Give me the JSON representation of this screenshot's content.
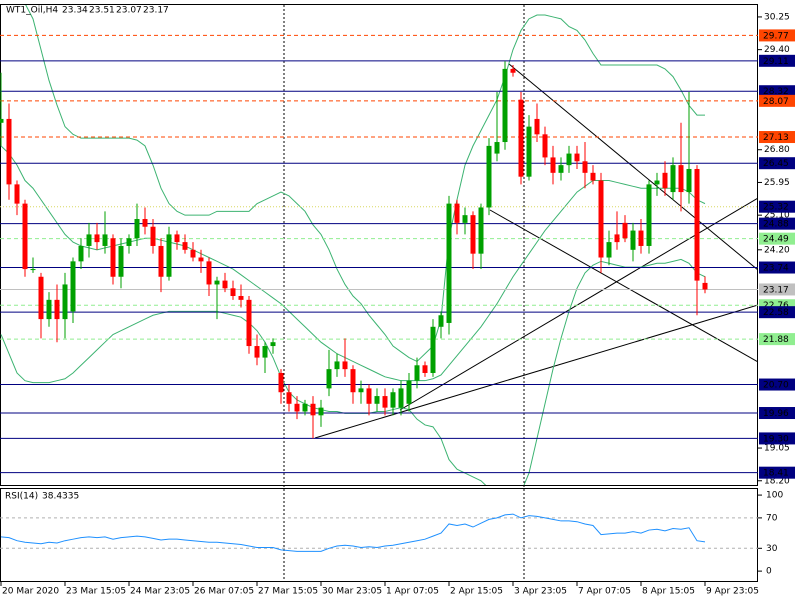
{
  "chart_data": [
    {
      "type": "candlestick",
      "title": "WT1_Oil,H4",
      "x": [
        "20 Mar 2020",
        null,
        null,
        null,
        null,
        null,
        null,
        null,
        "23 Mar 15:05",
        null,
        null,
        null,
        null,
        null,
        null,
        null,
        "24 Mar 23:05",
        null,
        null,
        null,
        null,
        null,
        null,
        null,
        "26 Mar 07:05",
        null,
        null,
        null,
        null,
        null,
        null,
        null,
        "27 Mar 15:05",
        null,
        null,
        null,
        null,
        null,
        null,
        null,
        "30 Mar 23:05",
        null,
        null,
        null,
        null,
        null,
        null,
        null,
        "1 Apr 07:05",
        null,
        null,
        null,
        null,
        null,
        null,
        null,
        "2 Apr 15:05",
        null,
        null,
        null,
        null,
        null,
        null,
        null,
        "3 Apr 23:05",
        null,
        null,
        null,
        null,
        null,
        null,
        null,
        "7 Apr 07:05",
        null,
        null,
        null,
        null,
        null,
        null,
        null,
        "8 Apr 15:05",
        null,
        null,
        null,
        null,
        null,
        null,
        null,
        "9 Apr 23:05"
      ],
      "open": [
        27.5,
        27.6,
        25.9,
        25.4,
        23.7,
        23.5,
        22.4,
        22.9,
        22.4,
        22.6,
        23.9,
        24.3,
        24.6,
        24.3,
        24.5,
        23.5,
        24.3,
        24.5,
        25.0,
        24.8,
        24.3,
        23.5,
        24.6,
        24.4,
        24.2,
        24.0,
        23.9,
        23.3,
        23.4,
        23.2,
        23.0,
        22.9,
        21.7,
        21.4,
        21.7,
        21.0,
        20.5,
        20.2,
        20.0,
        20.2,
        19.9,
        20.6,
        21.1,
        21.3,
        21.1,
        20.5,
        20.6,
        20.2,
        20.4,
        20.1,
        20.1,
        20.2,
        20.8,
        21.2,
        21.0,
        22.2,
        22.3,
        25.4,
        24.9,
        25.1,
        24.1,
        25.3,
        26.7,
        27.0,
        28.9,
        28.1,
        26.1,
        27.6,
        27.2,
        26.6,
        26.2,
        26.4,
        26.7,
        26.5,
        26.2,
        26.0,
        24.0,
        24.6,
        24.9,
        24.2,
        24.7,
        24.3,
        25.9,
        26.2,
        25.7,
        26.4,
        25.7,
        26.3,
        23.34
      ],
      "high": [
        28.8,
        28.0,
        26.0,
        25.5,
        24.0,
        23.6,
        23.1,
        23.3,
        23.6,
        24.0,
        24.5,
        24.9,
        24.9,
        25.2,
        24.6,
        24.5,
        24.6,
        25.4,
        25.3,
        25.0,
        24.5,
        24.8,
        24.7,
        24.6,
        24.4,
        24.2,
        24.0,
        23.5,
        23.6,
        23.4,
        23.3,
        23.0,
        22.0,
        21.8,
        21.9,
        21.1,
        20.7,
        20.4,
        20.3,
        20.4,
        20.3,
        21.6,
        21.5,
        21.9,
        21.2,
        20.8,
        20.7,
        20.6,
        20.6,
        20.6,
        20.8,
        21.0,
        21.4,
        21.3,
        22.4,
        22.6,
        25.6,
        25.5,
        25.3,
        25.2,
        25.4,
        27.1,
        28.3,
        29.1,
        29.0,
        28.3,
        27.7,
        28.0,
        27.4,
        26.9,
        26.6,
        26.9,
        26.9,
        27.0,
        26.4,
        26.2,
        24.7,
        25.2,
        25.1,
        24.9,
        25.0,
        26.0,
        26.2,
        26.5,
        26.6,
        27.5,
        28.3,
        26.4,
        23.51
      ],
      "low": [
        26.9,
        25.5,
        25.1,
        23.5,
        23.6,
        21.9,
        22.2,
        21.8,
        21.9,
        22.3,
        23.7,
        24.0,
        24.2,
        24.1,
        23.3,
        23.2,
        24.1,
        24.3,
        24.6,
        24.1,
        23.1,
        23.4,
        24.2,
        24.1,
        23.9,
        23.6,
        23.0,
        22.4,
        23.1,
        22.9,
        22.7,
        21.5,
        21.2,
        21.0,
        21.5,
        20.2,
        20.0,
        19.8,
        19.9,
        19.3,
        19.6,
        20.4,
        20.9,
        20.9,
        20.2,
        20.2,
        19.9,
        20.0,
        19.9,
        19.9,
        19.9,
        20.0,
        20.6,
        20.9,
        20.9,
        21.9,
        22.0,
        24.6,
        24.6,
        23.7,
        23.7,
        25.1,
        26.5,
        26.8,
        28.7,
        25.9,
        26.0,
        27.0,
        26.4,
        25.9,
        26.0,
        26.2,
        26.3,
        25.8,
        25.9,
        23.6,
        23.8,
        24.2,
        24.4,
        23.9,
        24.1,
        24.1,
        25.6,
        25.6,
        25.5,
        25.2,
        25.4,
        22.5,
        23.07
      ],
      "close": [
        27.6,
        25.9,
        25.4,
        23.7,
        23.7,
        22.4,
        22.9,
        22.4,
        23.3,
        23.9,
        24.3,
        24.6,
        24.4,
        24.6,
        23.5,
        24.3,
        24.5,
        25.0,
        24.8,
        24.3,
        23.5,
        24.6,
        24.4,
        24.2,
        24.0,
        23.9,
        23.3,
        23.4,
        23.2,
        23.0,
        22.9,
        21.7,
        21.4,
        21.7,
        21.8,
        20.5,
        20.2,
        20.0,
        20.2,
        19.9,
        20.1,
        21.1,
        21.3,
        21.1,
        20.5,
        20.6,
        20.2,
        20.4,
        20.1,
        20.5,
        20.6,
        20.8,
        21.2,
        21.0,
        22.2,
        22.5,
        25.4,
        24.9,
        25.1,
        24.1,
        25.3,
        26.9,
        27.0,
        28.9,
        28.8,
        26.1,
        27.4,
        27.2,
        26.6,
        26.2,
        26.4,
        26.7,
        26.5,
        26.2,
        26.0,
        24.0,
        24.4,
        24.4,
        24.5,
        24.7,
        24.3,
        25.9,
        26.0,
        25.8,
        26.4,
        25.7,
        26.3,
        23.4,
        23.17
      ],
      "up_color": "#00a000",
      "down_color": "#ff0000",
      "overlays": [
        {
          "color": "#3cb371",
          "values": [
            31.5,
            31.2,
            30.9,
            30.6,
            30.2,
            29.4,
            28.6,
            27.96,
            27.4,
            27.2,
            27.1,
            27.1,
            27.1,
            27.1,
            27.1,
            27.1,
            27.1,
            27.05,
            26.9,
            26.4,
            25.8,
            25.4,
            25.2,
            25.1,
            25.1,
            25.1,
            25.1,
            25.2,
            25.2,
            25.2,
            25.2,
            25.2,
            25.4,
            25.5,
            25.6,
            25.7,
            25.6,
            25.4,
            25.2,
            24.85,
            24.6,
            24.2,
            23.7,
            23.3,
            23.0,
            22.8,
            22.5,
            22.25,
            22.0,
            21.7,
            21.55,
            21.4,
            21.3,
            21.5,
            21.7,
            22.4,
            24.5,
            25.5,
            26.4,
            26.9,
            27.3,
            27.7,
            28.1,
            28.7,
            29.4,
            29.9,
            30.2,
            30.3,
            30.3,
            30.25,
            30.2,
            30.0,
            29.9,
            29.65,
            29.3,
            29.0,
            29.0,
            29.0,
            29.0,
            29.0,
            29.0,
            29.0,
            29.0,
            28.9,
            28.7,
            28.35,
            27.95,
            27.7,
            27.7
          ]
        },
        {
          "color": "#3cb371",
          "values": [
            26.9,
            26.7,
            26.4,
            26.0,
            25.8,
            25.5,
            25.2,
            24.9,
            24.6,
            24.4,
            24.3,
            24.25,
            24.2,
            24.25,
            24.3,
            24.35,
            24.4,
            24.45,
            24.5,
            24.5,
            24.45,
            24.4,
            24.35,
            24.3,
            24.2,
            24.1,
            24.0,
            23.9,
            23.8,
            23.7,
            23.55,
            23.4,
            23.25,
            23.1,
            22.95,
            22.8,
            22.6,
            22.4,
            22.2,
            22.0,
            21.8,
            21.65,
            21.5,
            21.4,
            21.3,
            21.2,
            21.1,
            21.0,
            20.9,
            20.85,
            20.8,
            20.8,
            20.8,
            20.8,
            20.85,
            20.95,
            21.2,
            21.45,
            21.7,
            21.95,
            22.2,
            22.5,
            22.8,
            23.15,
            23.5,
            23.8,
            24.1,
            24.4,
            24.7,
            24.95,
            25.2,
            25.45,
            25.7,
            25.85,
            26.0,
            26.0,
            26.0,
            25.95,
            25.9,
            25.85,
            25.8,
            25.8,
            25.8,
            25.8,
            25.8,
            25.8,
            25.7,
            25.5,
            25.4
          ]
        },
        {
          "color": "#3cb371",
          "values": [
            22.0,
            21.5,
            21.0,
            20.8,
            20.75,
            20.75,
            20.75,
            20.8,
            20.85,
            21.0,
            21.2,
            21.4,
            21.6,
            21.8,
            22.0,
            22.1,
            22.2,
            22.3,
            22.4,
            22.5,
            22.55,
            22.6,
            22.6,
            22.6,
            22.6,
            22.6,
            22.6,
            22.6,
            22.55,
            22.5,
            22.45,
            22.3,
            22.1,
            21.8,
            21.4,
            20.9,
            20.5,
            20.3,
            20.2,
            20.1,
            20.05,
            20.0,
            20.0,
            19.95,
            19.95,
            19.95,
            19.95,
            20.0,
            20.0,
            20.05,
            20.1,
            20.05,
            19.8,
            19.65,
            19.6,
            19.3,
            18.75,
            18.5,
            18.4,
            18.3,
            18.2,
            18.0,
            17.8,
            17.7,
            17.7,
            17.9,
            18.4,
            19.3,
            20.2,
            21.1,
            21.9,
            22.6,
            23.2,
            23.6,
            23.8,
            23.9,
            23.85,
            23.8,
            23.75,
            23.75,
            23.75,
            23.8,
            23.85,
            23.85,
            23.9,
            23.95,
            23.85,
            23.6,
            23.5
          ]
        }
      ],
      "ylim": [
        18.09,
        30.56
      ],
      "yticks": [
        30.25,
        {
          "value": 29.4,
          "label": "29.40"
        },
        {
          "value": 26.8,
          "label": "26.80"
        },
        25.95,
        {
          "value": 25.1,
          "label": "25.10"
        },
        {
          "value": 24.2,
          "label": "24.20"
        },
        19.05,
        {
          "value": 18.2,
          "label": "18.20"
        }
      ],
      "levels": [
        {
          "value": 29.77,
          "color": "#ff4500",
          "style": "dashed"
        },
        {
          "value": 29.11,
          "color": "#000080",
          "style": "solid"
        },
        {
          "value": 28.32,
          "color": "#000080",
          "style": "solid"
        },
        {
          "value": 28.07,
          "color": "#ff4500",
          "style": "dashed"
        },
        {
          "value": 27.13,
          "color": "#ff4500",
          "style": "dashed"
        },
        {
          "value": 26.45,
          "color": "#000080",
          "style": "solid"
        },
        {
          "value": 25.32,
          "color": "#d8d860",
          "style": "dotted",
          "label_color": "#000080"
        },
        {
          "value": 24.88,
          "color": "#000080",
          "style": "solid"
        },
        {
          "value": 24.49,
          "color": "#90ee90",
          "style": "dashed"
        },
        {
          "value": 23.74,
          "color": "#000080",
          "style": "solid"
        },
        {
          "value": 23.17,
          "color": "#c0c0c0",
          "style": "solid"
        },
        {
          "value": 22.76,
          "color": "#90ee90",
          "style": "dashed"
        },
        {
          "value": 22.58,
          "color": "#000080",
          "style": "solid"
        },
        {
          "value": 21.88,
          "color": "#90ee90",
          "style": "dashed"
        },
        {
          "value": 20.7,
          "label": "20.70",
          "color": "#000080",
          "style": "solid"
        },
        {
          "value": 19.96,
          "color": "#000080",
          "style": "solid"
        },
        {
          "value": 19.3,
          "label": "19.30",
          "color": "#000080",
          "style": "solid"
        },
        {
          "value": 18.41,
          "color": "#000080",
          "style": "solid"
        }
      ]
    },
    {
      "type": "line",
      "title": "RSI(14)",
      "series": [
        {
          "color": "#1e90ff",
          "values": [
            45,
            44,
            40,
            38,
            37,
            36,
            38,
            37,
            40,
            42,
            44,
            45,
            44,
            45,
            42,
            44,
            45,
            46,
            45,
            43,
            41,
            42,
            42,
            41,
            40,
            39,
            38,
            38,
            37,
            36,
            35,
            33,
            31,
            31,
            31,
            28,
            27,
            26,
            26,
            26,
            26,
            30,
            33,
            34,
            33,
            31,
            32,
            31,
            33,
            34,
            36,
            38,
            40,
            42,
            46,
            50,
            62,
            60,
            62,
            58,
            63,
            68,
            70,
            74,
            75,
            70,
            73,
            72,
            70,
            68,
            66,
            66,
            65,
            62,
            60,
            48,
            49,
            50,
            50,
            52,
            50,
            54,
            55,
            53,
            56,
            55,
            57,
            40,
            38.4335
          ]
        }
      ],
      "ylim": [
        -13,
        108
      ],
      "yticks": [
        100,
        70,
        30,
        0
      ],
      "levels": [
        70,
        30
      ]
    }
  ]
}
